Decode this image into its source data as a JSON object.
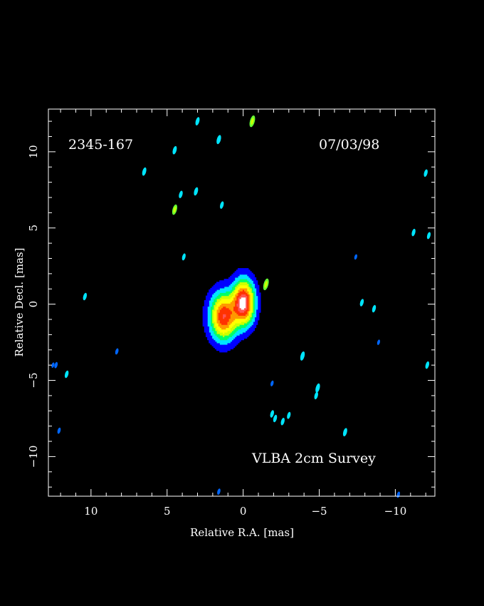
{
  "chart_data": {
    "type": "heatmap",
    "source_name": "2345-167",
    "date": "07/03/98",
    "survey_label": "VLBA 2cm Survey",
    "xlabel": "Relative R.A. [mas]",
    "ylabel": "Relative Decl. [mas]",
    "xlim": [
      12.8,
      -12.6
    ],
    "ylim": [
      -12.6,
      12.8
    ],
    "x_ticks": [
      10,
      5,
      0,
      -5,
      -10
    ],
    "y_ticks": [
      10,
      5,
      0,
      -5,
      -10
    ],
    "x_tick_labels": [
      "10",
      "5",
      "0",
      "−5",
      "−10"
    ],
    "y_tick_labels": [
      "10",
      "5",
      "0",
      "−5",
      "−10"
    ],
    "colormap": [
      "#0000ff",
      "#00e5ff",
      "#00ff66",
      "#ccff00",
      "#ffff00",
      "#ff9900",
      "#ff3300",
      "#ff5555",
      "#ffffff"
    ],
    "components": [
      {
        "ra": 0.0,
        "dec": 0.1,
        "peak": 1.0,
        "sigma_ra": 0.45,
        "sigma_dec": 0.9
      },
      {
        "ra": 1.3,
        "dec": -0.8,
        "peak": 0.82,
        "sigma_ra": 0.55,
        "sigma_dec": 0.95
      }
    ],
    "noise_spots": [
      {
        "ra": -0.6,
        "dec": 12.0,
        "level": 0.18
      },
      {
        "ra": 3.0,
        "dec": 12.0,
        "level": 0.1
      },
      {
        "ra": 1.6,
        "dec": 10.8,
        "level": 0.12
      },
      {
        "ra": 4.5,
        "dec": 10.1,
        "level": 0.1
      },
      {
        "ra": 6.5,
        "dec": 8.7,
        "level": 0.1
      },
      {
        "ra": 3.1,
        "dec": 7.4,
        "level": 0.1
      },
      {
        "ra": 4.1,
        "dec": 7.2,
        "level": 0.08
      },
      {
        "ra": 4.5,
        "dec": 6.2,
        "level": 0.15
      },
      {
        "ra": 1.4,
        "dec": 6.5,
        "level": 0.08
      },
      {
        "ra": 3.9,
        "dec": 3.1,
        "level": 0.07
      },
      {
        "ra": -1.5,
        "dec": 1.3,
        "level": 0.18
      },
      {
        "ra": 10.4,
        "dec": 0.5,
        "level": 0.08
      },
      {
        "ra": -7.8,
        "dec": 0.1,
        "level": 0.08
      },
      {
        "ra": -8.6,
        "dec": -0.3,
        "level": 0.08
      },
      {
        "ra": -3.9,
        "dec": -3.4,
        "level": 0.12
      },
      {
        "ra": 8.3,
        "dec": -3.1,
        "level": 0.05
      },
      {
        "ra": 11.6,
        "dec": -4.6,
        "level": 0.08
      },
      {
        "ra": 12.3,
        "dec": -4.0,
        "level": 0.05
      },
      {
        "ra": -4.9,
        "dec": -5.5,
        "level": 0.12
      },
      {
        "ra": -4.8,
        "dec": -6.0,
        "level": 0.08
      },
      {
        "ra": -1.9,
        "dec": -7.2,
        "level": 0.08
      },
      {
        "ra": -2.1,
        "dec": -7.5,
        "level": 0.08
      },
      {
        "ra": -2.6,
        "dec": -7.7,
        "level": 0.08
      },
      {
        "ra": -3.0,
        "dec": -7.3,
        "level": 0.07
      },
      {
        "ra": -6.7,
        "dec": -8.4,
        "level": 0.1
      },
      {
        "ra": 12.1,
        "dec": -8.3,
        "level": 0.05
      },
      {
        "ra": -11.2,
        "dec": 4.7,
        "level": 0.08
      },
      {
        "ra": -12.2,
        "dec": 4.5,
        "level": 0.07
      },
      {
        "ra": -12.0,
        "dec": 8.6,
        "level": 0.08
      },
      {
        "ra": -12.1,
        "dec": -4.0,
        "level": 0.08
      },
      {
        "ra": 1.6,
        "dec": -12.3,
        "level": 0.05
      },
      {
        "ra": -10.2,
        "dec": -12.5,
        "level": 0.05
      },
      {
        "ra": -1.9,
        "dec": -5.2,
        "level": 0.04
      },
      {
        "ra": -7.4,
        "dec": 3.1,
        "level": 0.03
      },
      {
        "ra": -8.9,
        "dec": -2.5,
        "level": 0.03
      },
      {
        "ra": 12.5,
        "dec": -4.0,
        "level": 0.03
      }
    ]
  }
}
